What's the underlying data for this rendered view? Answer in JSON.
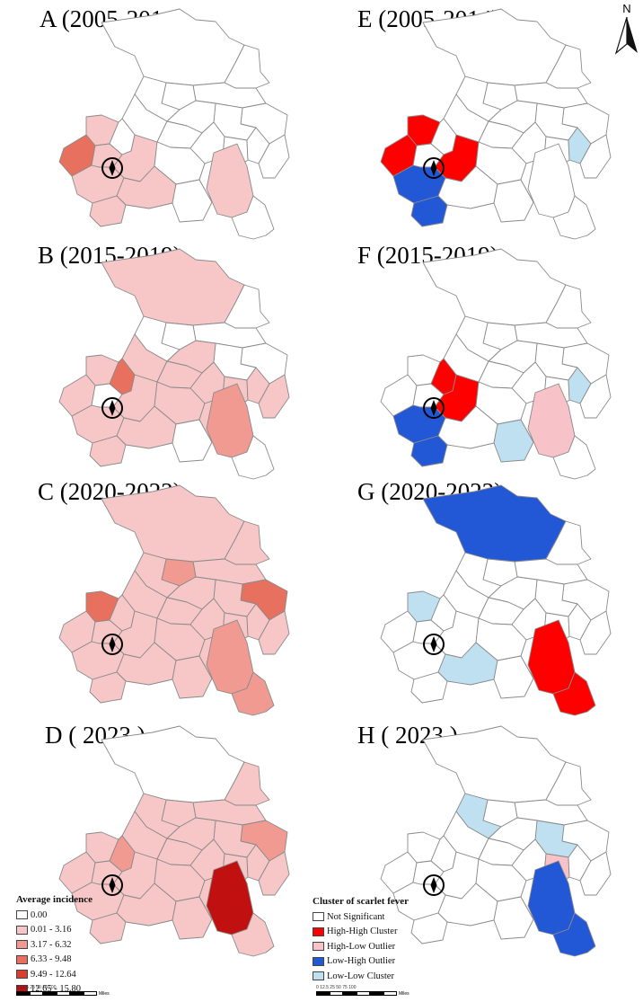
{
  "panels": [
    {
      "id": "A",
      "title": "A (2005-2014)",
      "type": "incidence",
      "fills": {
        "wA": 1,
        "wB": 3,
        "dNW": 0,
        "cS": 1,
        "d4": 1,
        "d5": 1,
        "d6": 1,
        "d12": 1,
        "x5": 1
      }
    },
    {
      "id": "E",
      "title": "E (2005-2014)",
      "type": "cluster",
      "fills": {
        "wA": "hh",
        "wB": "hh",
        "d4": "hh",
        "d5": "lh",
        "d6": "lh",
        "x2": "ll"
      }
    },
    {
      "id": "B",
      "title": "B (2015-2019)",
      "type": "incidence",
      "fills": {
        "wA": 1,
        "wB": 1,
        "dNW": 1,
        "d4": 1,
        "d5": 1,
        "d6": 1,
        "d7": 1,
        "d8": 3,
        "d9": 1,
        "d10": 1,
        "d11": 1,
        "d12": 1,
        "d13": 1,
        "x1": 1,
        "x2": 1,
        "x3": 1,
        "x4": 1,
        "x5": 2
      }
    },
    {
      "id": "F",
      "title": "F (2015-2019)",
      "type": "cluster",
      "fills": {
        "d4": "hh",
        "d5": "lh",
        "d6": "lh",
        "d8": "hh",
        "x2": "ll",
        "x6": "ll",
        "x5": "hl"
      }
    },
    {
      "id": "C",
      "title": "C (2020-2022)",
      "type": "incidence",
      "fills": {
        "wA": 3,
        "wB": 1,
        "cS": 1,
        "dNW": 1,
        "d4": 1,
        "d5": 1,
        "d6": 1,
        "d7": 1,
        "d8": 1,
        "d9": 1,
        "d10": 1,
        "d11": 1,
        "d12": 1,
        "d13": 1,
        "x1": 1,
        "x2": 1,
        "x3": 1,
        "x4": 1,
        "x5": 2,
        "x6": 1,
        "x7": 2,
        "e1": 1,
        "e2": 1,
        "e3": 3,
        "e4": 1,
        "n1": 2,
        "n2": 1,
        "s1": 1
      }
    },
    {
      "id": "G",
      "title": "G (2020-2022)",
      "type": "cluster",
      "fills": {
        "dNW": "lh",
        "wA": "ll",
        "d12": "ll",
        "x5": "hh",
        "x7": "hh"
      }
    },
    {
      "id": "D",
      "title": "D ( 2023 )",
      "type": "incidence",
      "fills": {
        "wA": 1,
        "wB": 1,
        "cS": 1,
        "dNW": 0,
        "d4": 1,
        "d5": 1,
        "d6": 1,
        "d7": 1,
        "d8": 2,
        "d9": 1,
        "d10": 1,
        "d11": 1,
        "d12": 1,
        "d13": 1,
        "x1": 1,
        "x2": 1,
        "x3": 1,
        "x4": 1,
        "x5": 5,
        "x6": 1,
        "x7": 1,
        "e1": 1,
        "e2": 1,
        "e3": 2,
        "e4": 1,
        "n1": 1,
        "n2": 1,
        "s1": 1
      }
    },
    {
      "id": "H",
      "title": "H ( 2023 )",
      "type": "cluster",
      "fills": {
        "x1": "hl",
        "n2": "ll",
        "e4": "ll",
        "x5": "lh",
        "x7": "lh"
      }
    }
  ],
  "legend_incidence": {
    "title": "Average incidence",
    "items": [
      {
        "label": "0.00",
        "color": "#ffffff"
      },
      {
        "label": "0.01 - 3.16",
        "color": "#f7c7c7"
      },
      {
        "label": "3.17 - 6.32",
        "color": "#f09a92"
      },
      {
        "label": "6.33 - 9.48",
        "color": "#e8705f"
      },
      {
        "label": "9.49 - 12.64",
        "color": "#d7402f"
      },
      {
        "label": "12.65 - 15.80",
        "color": "#c0100f"
      }
    ]
  },
  "legend_cluster": {
    "title": "Cluster of scarlet fever",
    "items": [
      {
        "label": "Not Significant",
        "color": "#ffffff"
      },
      {
        "label": "High-High Cluster",
        "color": "#ff0000"
      },
      {
        "label": "High-Low Outlier",
        "color": "#f7c3c8"
      },
      {
        "label": "Low-High Outlier",
        "color": "#2257d6"
      },
      {
        "label": "Low-Low Cluster",
        "color": "#bfe0f0"
      }
    ]
  },
  "cluster_colors": {
    "hh": "#ff0000",
    "hl": "#f7c3c8",
    "lh": "#2257d6",
    "ll": "#bfe0f0"
  },
  "scalebar": {
    "ticks": "0 12.5 25     50      75     100",
    "unit": "Miles"
  },
  "north_label": "N"
}
